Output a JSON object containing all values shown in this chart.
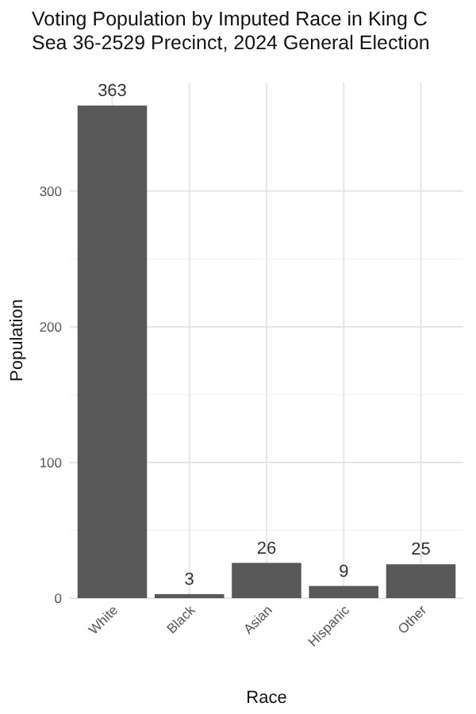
{
  "chart_data": {
    "type": "bar",
    "title": "Voting Population by Imputed Race in King C",
    "subtitle": "Sea 36-2529 Precinct,  2024 General Election",
    "xlabel": "Race",
    "ylabel": "Population",
    "categories": [
      "White",
      "Black",
      "Asian",
      "Hispanic",
      "Other"
    ],
    "values": [
      363,
      3,
      26,
      9,
      25
    ],
    "color": "#595959",
    "data_labels": true,
    "ylim": [
      0,
      380
    ],
    "yticks": [
      0,
      100,
      200,
      300
    ],
    "grid": true
  }
}
